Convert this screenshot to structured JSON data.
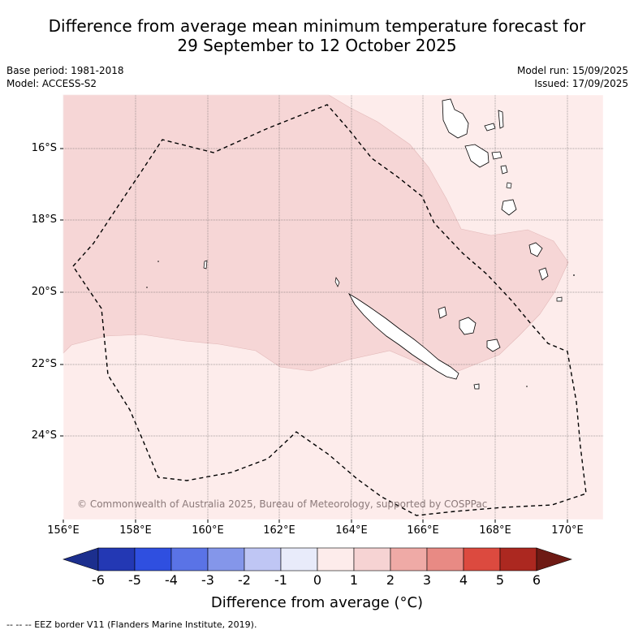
{
  "title_line1": "Difference from average mean minimum temperature forecast for",
  "title_line2": "29 September to 12 October 2025",
  "meta_left": {
    "base_period": "Base period: 1981-2018",
    "model": "Model: ACCESS-S2"
  },
  "meta_right": {
    "model_run": "Model run: 15/09/2025",
    "issued": "Issued: 17/09/2025"
  },
  "lat_labels": [
    "16°S",
    "18°S",
    "20°S",
    "22°S",
    "24°S"
  ],
  "lon_labels": [
    "156°E",
    "158°E",
    "160°E",
    "162°E",
    "164°E",
    "166°E",
    "168°E",
    "170°E"
  ],
  "copyright": "© Commonwealth of Australia 2025, Bureau of Meteorology, supported by COSPPac",
  "colorbar": {
    "ticks": [
      "-6",
      "-5",
      "-4",
      "-3",
      "-2",
      "-1",
      "0",
      "1",
      "2",
      "3",
      "4",
      "5",
      "6"
    ],
    "colors": [
      "#1c2f8e",
      "#2338b4",
      "#2f4fe0",
      "#5a73e6",
      "#8496ea",
      "#bfc6f4",
      "#e8ebfa",
      "#fdeceb",
      "#f6d3d3",
      "#efaaa6",
      "#e88a84",
      "#dc4a3f",
      "#ac2820",
      "#6e1a14"
    ],
    "label": "Difference from average (°C)"
  },
  "legend_note": "--  --  -- EEZ border V11 (Flanders Marine Institute, 2019).",
  "colors": {
    "anomaly_0_1": "#fdeceb",
    "anomaly_1_2": "#f6d6d6"
  }
}
